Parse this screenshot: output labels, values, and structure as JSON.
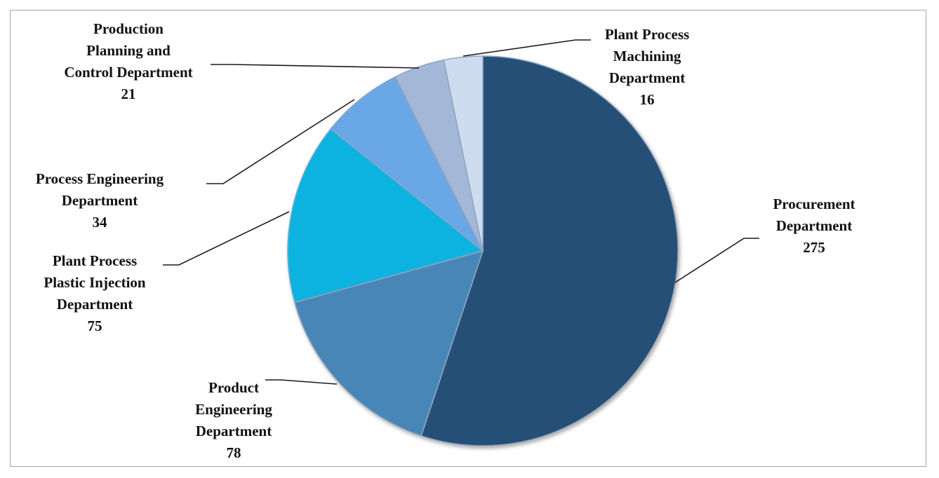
{
  "chart_data": {
    "type": "pie",
    "title": "",
    "slices": [
      {
        "label": "Procurement Department",
        "value": 275,
        "color": "#264f78"
      },
      {
        "label": "Product Engineering Department",
        "value": 78,
        "color": "#4a86b8"
      },
      {
        "label": "Plant Process Plastic Injection Department",
        "value": 75,
        "color": "#0db3e0"
      },
      {
        "label": "Process Engineering Department",
        "value": 34,
        "color": "#6aa7e6"
      },
      {
        "label": "Production Planning and Control Department",
        "value": 21,
        "color": "#a3b8d8"
      },
      {
        "label": "Plant Process Machining Department",
        "value": 16,
        "color": "#cfdcf0"
      }
    ],
    "labels_display": [
      {
        "lines": [
          "Procurement",
          "Department",
          "275"
        ]
      },
      {
        "lines": [
          "Product",
          "Engineering",
          "Department",
          "78"
        ]
      },
      {
        "lines": [
          "Plant Process",
          "Plastic Injection",
          "Department",
          "75"
        ]
      },
      {
        "lines": [
          "Process Engineering",
          "Department",
          "34"
        ]
      },
      {
        "lines": [
          "Production",
          "Planning and",
          "Control Department",
          "21"
        ]
      },
      {
        "lines": [
          "Plant Process",
          "Machining",
          "Department",
          "16"
        ]
      }
    ],
    "legend": "none",
    "data_labels": "outside-with-leader-lines"
  }
}
